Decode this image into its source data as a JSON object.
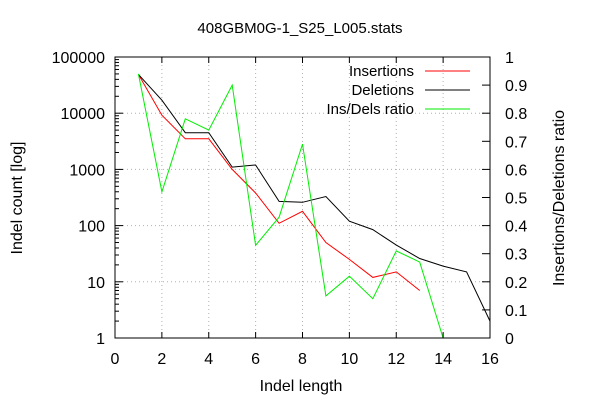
{
  "chart_data": {
    "type": "line",
    "title": "408GBM0G-1_S25_L005.stats",
    "xlabel": "Indel length",
    "ylabel": "Indel count [log]",
    "y2label": "Insertions/Deletions ratio",
    "xlim": [
      0,
      16
    ],
    "ylim": [
      1,
      100000
    ],
    "y2lim": [
      0,
      1
    ],
    "yscale": "log",
    "grid": true,
    "legend_position": "top-right",
    "x_ticks": [
      "0",
      "2",
      "4",
      "6",
      "8",
      "10",
      "12",
      "14",
      "16"
    ],
    "y_ticks": [
      "1",
      "10",
      "100",
      "1000",
      "10000",
      "100000"
    ],
    "y2_ticks": [
      "0",
      "0.1",
      "0.2",
      "0.3",
      "0.4",
      "0.5",
      "0.6",
      "0.7",
      "0.8",
      "0.9",
      "1"
    ],
    "series": [
      {
        "name": "Insertions",
        "axis": "left",
        "color": "#ff0000",
        "x": [
          1,
          2,
          3,
          4,
          5,
          6,
          7,
          8,
          9,
          10,
          11,
          12,
          13
        ],
        "values": [
          49000,
          9200,
          3500,
          3500,
          1000,
          380,
          110,
          180,
          50,
          25,
          12,
          15,
          7
        ]
      },
      {
        "name": "Deletions",
        "axis": "left",
        "color": "#000000",
        "x": [
          1,
          2,
          3,
          4,
          5,
          6,
          7,
          8,
          9,
          10,
          11,
          12,
          13,
          14,
          15,
          16
        ],
        "values": [
          49000,
          17000,
          4500,
          4500,
          1100,
          1200,
          270,
          260,
          330,
          120,
          85,
          45,
          26,
          19,
          15,
          2
        ]
      },
      {
        "name": "Ins/Dels ratio",
        "axis": "right",
        "color": "#00ee00",
        "x": [
          1,
          2,
          3,
          4,
          5,
          6,
          7,
          8,
          9,
          10,
          11,
          12,
          13,
          14
        ],
        "values": [
          0.94,
          0.52,
          0.78,
          0.74,
          0.9,
          0.33,
          0.43,
          0.69,
          0.15,
          0.22,
          0.14,
          0.31,
          0.27,
          0
        ]
      }
    ]
  }
}
